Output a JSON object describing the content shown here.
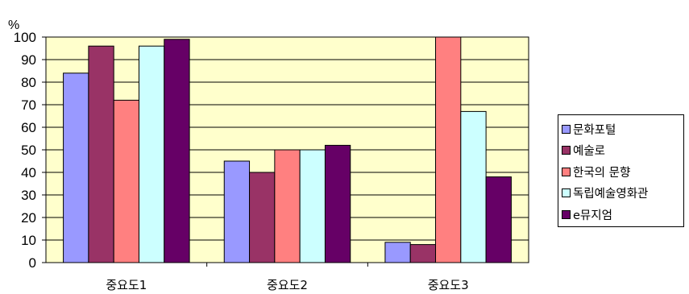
{
  "chart_data": {
    "type": "bar",
    "unit_label": "%",
    "categories": [
      "중요도1",
      "중요도2",
      "중요도3"
    ],
    "series": [
      {
        "name": "문화포털",
        "color": "#9999FF",
        "values": [
          84,
          45,
          9
        ]
      },
      {
        "name": "예술로",
        "color": "#993366",
        "values": [
          96,
          40,
          8
        ]
      },
      {
        "name": "한국의 문향",
        "color": "#FF8080",
        "values": [
          72,
          50,
          100
        ]
      },
      {
        "name": "독립예술영화관",
        "color": "#CCFFFF",
        "values": [
          96,
          50,
          67
        ]
      },
      {
        "name": "e뮤지엄",
        "color": "#660066",
        "values": [
          99,
          52,
          38
        ]
      }
    ],
    "ylim": [
      0,
      100
    ],
    "yticks": [
      "0",
      "10",
      "20",
      "30",
      "40",
      "50",
      "60",
      "70",
      "80",
      "90",
      "100"
    ],
    "grid": true,
    "plot_background": "#FFFFCC",
    "legend_position": "right"
  }
}
